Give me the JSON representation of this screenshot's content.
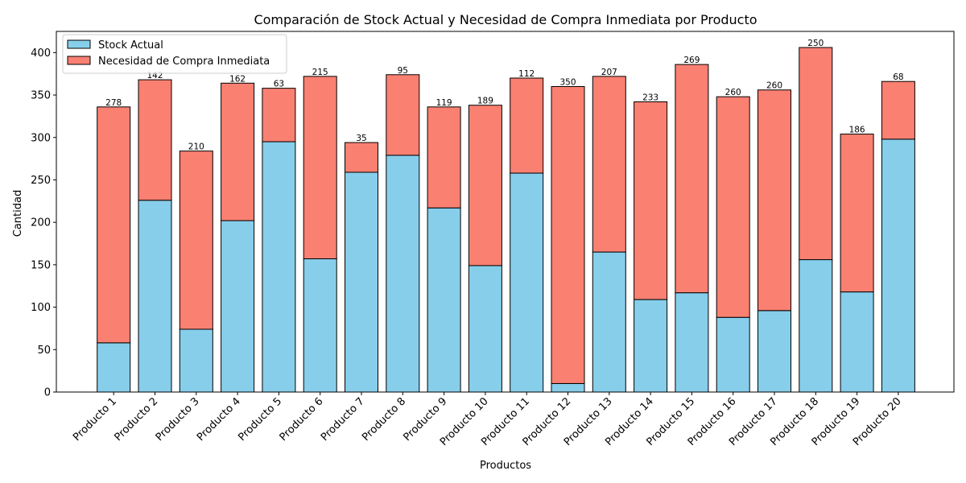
{
  "chart_data": {
    "type": "bar",
    "stacked": true,
    "title": "Comparación de Stock Actual y Necesidad de Compra Inmediata por Producto",
    "xlabel": "Productos",
    "ylabel": "Cantidad",
    "ylim": [
      0,
      425
    ],
    "yticks": [
      "0",
      "50",
      "100",
      "150",
      "200",
      "250",
      "300",
      "350",
      "400"
    ],
    "categories": [
      "Producto 1",
      "Producto 2",
      "Producto 3",
      "Producto 4",
      "Producto 5",
      "Producto 6",
      "Producto 7",
      "Producto 8",
      "Producto 9",
      "Producto 10",
      "Producto 11",
      "Producto 12",
      "Producto 13",
      "Producto 14",
      "Producto 15",
      "Producto 16",
      "Producto 17",
      "Producto 18",
      "Producto 19",
      "Producto 20"
    ],
    "series": [
      {
        "name": "Stock Actual",
        "color": "#87CEEB",
        "values": [
          58,
          226,
          74,
          202,
          295,
          157,
          259,
          279,
          217,
          149,
          258,
          10,
          165,
          109,
          117,
          88,
          96,
          156,
          118,
          298
        ]
      },
      {
        "name": "Necesidad de Compra Inmediata",
        "color": "#FA8072",
        "values": [
          278,
          142,
          210,
          162,
          63,
          215,
          35,
          95,
          119,
          189,
          112,
          350,
          207,
          233,
          269,
          260,
          260,
          250,
          186,
          68
        ]
      }
    ],
    "legend_position": "top-left",
    "grid": false
  }
}
